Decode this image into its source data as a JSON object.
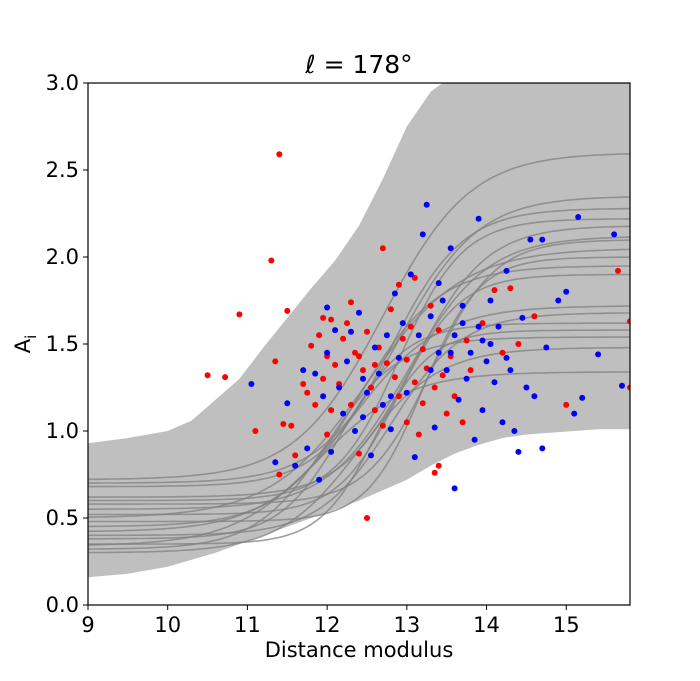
{
  "chart_data": {
    "type": "scatter",
    "title": "ℓ = 178°",
    "xlabel": "Distance modulus",
    "ylabel": "A",
    "ylabel_subscript": "i",
    "xlim": [
      9,
      15.8
    ],
    "ylim": [
      0.0,
      3.0
    ],
    "x_ticks": [
      9,
      10,
      11,
      12,
      13,
      14,
      15
    ],
    "x_tick_labels": [
      "9",
      "10",
      "11",
      "12",
      "13",
      "14",
      "15"
    ],
    "y_ticks": [
      0.0,
      0.5,
      1.0,
      1.5,
      2.0,
      2.5,
      3.0
    ],
    "y_tick_labels": [
      "0.0",
      "0.5",
      "1.0",
      "1.5",
      "2.0",
      "2.5",
      "3.0"
    ],
    "grid": false,
    "colors": {
      "band": "#bfbfbf",
      "curves": "#808080",
      "series_red": "#ff0000",
      "series_blue": "#0000ff"
    },
    "band": {
      "x": [
        9.0,
        9.5,
        10.0,
        10.3,
        10.6,
        10.9,
        11.2,
        11.5,
        11.8,
        12.1,
        12.4,
        12.7,
        13.0,
        13.3,
        13.6,
        13.9,
        14.2,
        14.5,
        14.8,
        15.1,
        15.4,
        15.8
      ],
      "upper": [
        0.93,
        0.96,
        1.0,
        1.06,
        1.18,
        1.3,
        1.48,
        1.65,
        1.82,
        1.98,
        2.18,
        2.45,
        2.75,
        2.95,
        3.05,
        3.1,
        3.1,
        3.1,
        3.1,
        3.1,
        3.1,
        3.1
      ],
      "lower": [
        0.16,
        0.18,
        0.22,
        0.26,
        0.3,
        0.35,
        0.4,
        0.45,
        0.5,
        0.55,
        0.6,
        0.66,
        0.72,
        0.8,
        0.87,
        0.92,
        0.96,
        0.98,
        0.99,
        1.0,
        1.01,
        1.01
      ]
    },
    "curves": [
      {
        "base": 0.72,
        "top": 2.6,
        "mid": 12.7,
        "w": 0.55
      },
      {
        "base": 0.7,
        "top": 2.35,
        "mid": 12.9,
        "w": 0.5
      },
      {
        "base": 0.68,
        "top": 2.28,
        "mid": 12.8,
        "w": 0.45
      },
      {
        "base": 0.6,
        "top": 2.22,
        "mid": 12.9,
        "w": 0.4
      },
      {
        "base": 0.62,
        "top": 2.18,
        "mid": 13.1,
        "w": 0.45
      },
      {
        "base": 0.55,
        "top": 2.12,
        "mid": 13.0,
        "w": 0.5
      },
      {
        "base": 0.5,
        "top": 2.05,
        "mid": 12.5,
        "w": 0.6
      },
      {
        "base": 0.48,
        "top": 2.0,
        "mid": 13.2,
        "w": 0.35
      },
      {
        "base": 0.45,
        "top": 1.95,
        "mid": 12.4,
        "w": 0.5
      },
      {
        "base": 0.42,
        "top": 1.72,
        "mid": 12.3,
        "w": 0.55
      },
      {
        "base": 0.4,
        "top": 1.68,
        "mid": 12.8,
        "w": 0.45
      },
      {
        "base": 0.38,
        "top": 1.62,
        "mid": 12.2,
        "w": 0.4
      },
      {
        "base": 0.35,
        "top": 1.58,
        "mid": 12.6,
        "w": 0.35
      },
      {
        "base": 0.32,
        "top": 1.54,
        "mid": 12.0,
        "w": 0.45
      },
      {
        "base": 0.3,
        "top": 1.48,
        "mid": 12.4,
        "w": 0.5
      },
      {
        "base": 0.34,
        "top": 1.34,
        "mid": 11.9,
        "w": 0.55
      },
      {
        "base": 0.58,
        "top": 2.1,
        "mid": 13.3,
        "w": 0.4
      },
      {
        "base": 0.52,
        "top": 1.9,
        "mid": 12.9,
        "w": 0.38
      }
    ],
    "series": [
      {
        "color": "red",
        "points": [
          [
            10.5,
            1.32
          ],
          [
            10.72,
            1.31
          ],
          [
            10.9,
            1.67
          ],
          [
            11.1,
            1.0
          ],
          [
            11.3,
            1.98
          ],
          [
            11.35,
            1.4
          ],
          [
            11.4,
            2.59
          ],
          [
            11.4,
            0.75
          ],
          [
            11.45,
            1.04
          ],
          [
            11.5,
            1.69
          ],
          [
            11.55,
            1.03
          ],
          [
            11.6,
            0.86
          ],
          [
            11.7,
            1.27
          ],
          [
            11.75,
            1.22
          ],
          [
            11.8,
            1.49
          ],
          [
            11.85,
            1.15
          ],
          [
            11.9,
            1.55
          ],
          [
            11.95,
            1.3
          ],
          [
            12.0,
            1.43
          ],
          [
            12.0,
            0.98
          ],
          [
            12.05,
            1.64
          ],
          [
            12.1,
            1.38
          ],
          [
            12.15,
            1.27
          ],
          [
            12.2,
            1.53
          ],
          [
            12.25,
            1.62
          ],
          [
            12.3,
            1.74
          ],
          [
            12.3,
            1.15
          ],
          [
            12.35,
            1.45
          ],
          [
            12.4,
            0.87
          ],
          [
            12.45,
            1.35
          ],
          [
            12.5,
            0.5
          ],
          [
            12.5,
            1.57
          ],
          [
            12.55,
            1.25
          ],
          [
            12.6,
            1.12
          ],
          [
            12.65,
            1.48
          ],
          [
            12.7,
            2.05
          ],
          [
            12.7,
            1.03
          ],
          [
            12.75,
            1.39
          ],
          [
            12.8,
            1.7
          ],
          [
            12.85,
            1.31
          ],
          [
            12.9,
            1.2
          ],
          [
            12.9,
            1.84
          ],
          [
            12.95,
            1.53
          ],
          [
            13.0,
            1.41
          ],
          [
            13.0,
            1.05
          ],
          [
            13.05,
            1.6
          ],
          [
            13.1,
            1.88
          ],
          [
            13.1,
            1.28
          ],
          [
            13.15,
            0.98
          ],
          [
            13.2,
            1.47
          ],
          [
            13.25,
            1.36
          ],
          [
            13.3,
            1.72
          ],
          [
            13.35,
            0.76
          ],
          [
            13.35,
            1.25
          ],
          [
            13.4,
            0.8
          ],
          [
            13.4,
            1.58
          ],
          [
            13.45,
            1.32
          ],
          [
            13.5,
            1.1
          ],
          [
            13.55,
            1.43
          ],
          [
            13.6,
            1.2
          ],
          [
            13.7,
            1.05
          ],
          [
            13.75,
            1.52
          ],
          [
            13.8,
            1.35
          ],
          [
            13.95,
            1.62
          ],
          [
            14.1,
            1.81
          ],
          [
            14.2,
            1.45
          ],
          [
            14.3,
            1.82
          ],
          [
            14.4,
            1.5
          ],
          [
            14.6,
            1.66
          ],
          [
            15.0,
            1.15
          ],
          [
            15.65,
            1.92
          ],
          [
            15.8,
            1.63
          ],
          [
            15.8,
            1.25
          ],
          [
            12.05,
            1.12
          ],
          [
            12.6,
            1.38
          ],
          [
            13.2,
            1.16
          ],
          [
            11.95,
            1.65
          ],
          [
            12.4,
            1.43
          ]
        ]
      },
      {
        "color": "blue",
        "points": [
          [
            11.05,
            1.27
          ],
          [
            11.35,
            0.82
          ],
          [
            11.5,
            1.16
          ],
          [
            11.6,
            0.8
          ],
          [
            11.7,
            1.35
          ],
          [
            11.75,
            0.9
          ],
          [
            11.85,
            1.33
          ],
          [
            11.9,
            0.72
          ],
          [
            11.95,
            1.2
          ],
          [
            12.0,
            1.71
          ],
          [
            12.0,
            1.45
          ],
          [
            12.05,
            0.88
          ],
          [
            12.1,
            1.58
          ],
          [
            12.15,
            1.25
          ],
          [
            12.2,
            1.1
          ],
          [
            12.25,
            1.4
          ],
          [
            12.3,
            1.57
          ],
          [
            12.35,
            1.0
          ],
          [
            12.4,
            1.68
          ],
          [
            12.45,
            1.3
          ],
          [
            12.5,
            1.22
          ],
          [
            12.55,
            0.86
          ],
          [
            12.6,
            1.48
          ],
          [
            12.65,
            1.33
          ],
          [
            12.7,
            1.15
          ],
          [
            12.75,
            1.55
          ],
          [
            12.8,
            1.01
          ],
          [
            12.85,
            1.79
          ],
          [
            12.9,
            1.42
          ],
          [
            12.95,
            1.62
          ],
          [
            13.0,
            1.22
          ],
          [
            13.05,
            1.9
          ],
          [
            13.1,
            0.85
          ],
          [
            13.15,
            1.55
          ],
          [
            13.2,
            2.13
          ],
          [
            13.25,
            2.3
          ],
          [
            13.3,
            1.66
          ],
          [
            13.35,
            1.02
          ],
          [
            13.4,
            1.45
          ],
          [
            13.4,
            1.85
          ],
          [
            13.45,
            1.75
          ],
          [
            13.5,
            1.35
          ],
          [
            13.55,
            2.05
          ],
          [
            13.6,
            0.67
          ],
          [
            13.6,
            1.55
          ],
          [
            13.65,
            1.18
          ],
          [
            13.7,
            1.72
          ],
          [
            13.75,
            1.3
          ],
          [
            13.8,
            1.45
          ],
          [
            13.85,
            0.95
          ],
          [
            13.9,
            2.22
          ],
          [
            13.9,
            1.6
          ],
          [
            13.95,
            1.12
          ],
          [
            14.0,
            1.4
          ],
          [
            14.05,
            1.75
          ],
          [
            14.1,
            1.28
          ],
          [
            14.15,
            1.6
          ],
          [
            14.2,
            1.05
          ],
          [
            14.25,
            1.92
          ],
          [
            14.3,
            1.35
          ],
          [
            14.35,
            1.0
          ],
          [
            14.4,
            0.88
          ],
          [
            14.45,
            1.65
          ],
          [
            14.5,
            1.25
          ],
          [
            14.55,
            2.1
          ],
          [
            14.6,
            1.2
          ],
          [
            14.7,
            2.1
          ],
          [
            14.7,
            0.9
          ],
          [
            14.75,
            1.48
          ],
          [
            14.9,
            1.75
          ],
          [
            15.0,
            1.8
          ],
          [
            15.1,
            1.1
          ],
          [
            15.15,
            2.23
          ],
          [
            15.2,
            1.19
          ],
          [
            15.4,
            1.44
          ],
          [
            15.6,
            2.13
          ],
          [
            15.7,
            1.26
          ],
          [
            12.8,
            1.2
          ],
          [
            13.3,
            1.35
          ],
          [
            13.55,
            1.45
          ],
          [
            14.05,
            1.5
          ],
          [
            13.7,
            1.62
          ],
          [
            12.45,
            1.08
          ],
          [
            13.95,
            1.52
          ],
          [
            14.25,
            1.42
          ]
        ]
      }
    ]
  }
}
